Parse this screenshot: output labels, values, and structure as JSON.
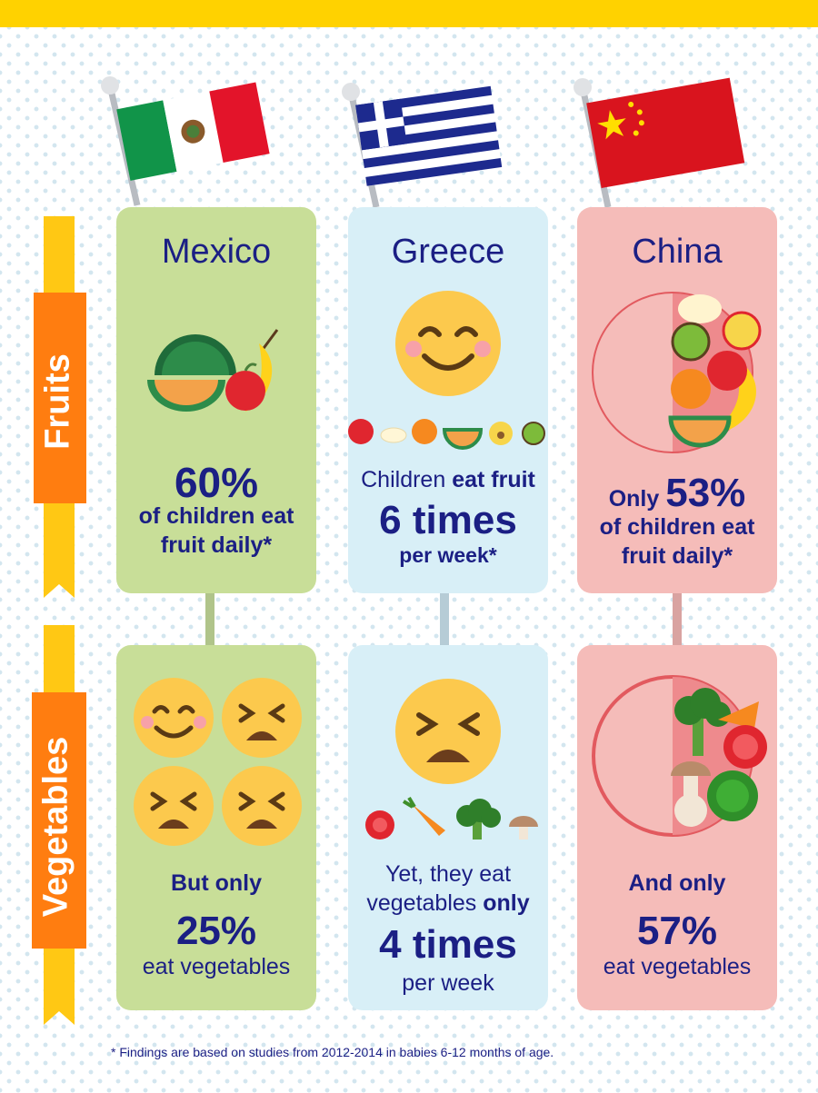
{
  "categories": {
    "fruits": "Fruits",
    "vegetables": "Vegetables"
  },
  "countries": [
    {
      "name": "Mexico",
      "fruit": {
        "line1": "60%",
        "line2": "of children eat",
        "line3": "fruit daily*"
      },
      "veg": {
        "line1": "But only",
        "line2": "25%",
        "line3": "eat vegetables"
      }
    },
    {
      "name": "Greece",
      "fruit": {
        "line1a": "Children ",
        "line1b": "eat fruit",
        "line2": "6 times",
        "line3": "per week*"
      },
      "veg": {
        "line1": "Yet, they eat",
        "line2a": "vegetables ",
        "line2b": "only",
        "line3": "4 times",
        "line4": "per week"
      }
    },
    {
      "name": "China",
      "fruit": {
        "line1a": "Only ",
        "line1b": "53%",
        "line2": "of children eat",
        "line3": "fruit daily*"
      },
      "veg": {
        "line1": "And only",
        "line2": "57%",
        "line3": "eat vegetables"
      }
    }
  ],
  "footnote": "* Findings are based on studies from 2012-2014 in babies 6-12 months of age.",
  "colors": {
    "mexico_card": "#c8de98",
    "greece_card": "#d8eff7",
    "china_card": "#f5bcb9",
    "label_orange": "#ff7d10",
    "label_yellow": "#ffc814",
    "text_navy": "#1b1f84"
  },
  "icons": [
    "mexico-flag-icon",
    "greece-flag-icon",
    "china-flag-icon",
    "watermelon-icon",
    "banana-icon",
    "apple-icon",
    "happy-face-icon",
    "upset-face-icon",
    "plate-icon",
    "carrot-icon",
    "broccoli-icon",
    "tomato-icon",
    "mushroom-icon",
    "kiwi-icon",
    "orange-icon",
    "melon-icon"
  ]
}
